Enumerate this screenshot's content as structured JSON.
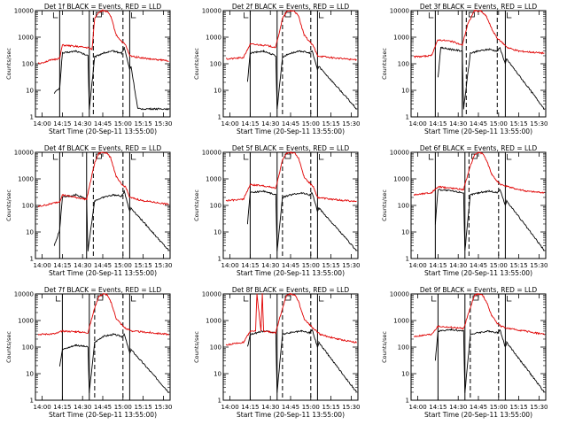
{
  "chart_data": {
    "type": "line",
    "xlabel": "Start Time (20-Sep-11 13:55:00)",
    "ylabel": "Counts/sec",
    "yscale": "log",
    "ylim": [
      1,
      10000
    ],
    "xlim_minutes": [
      0,
      100
    ],
    "x_ticks": [
      "14:00",
      "14:15",
      "14:30",
      "14:45",
      "15:00",
      "15:15",
      "15:30"
    ],
    "x_tick_minutes": [
      5,
      20,
      35,
      50,
      65,
      80,
      95
    ],
    "y_ticks": [
      "1",
      "10",
      "100",
      "1000",
      "10000"
    ],
    "y_tick_values": [
      1,
      10,
      100,
      1000,
      10000
    ],
    "legend_text": "BLACK = Events, RED = LLD",
    "series_colors": {
      "events": "#000000",
      "lld": "#e00000"
    },
    "panels": [
      {
        "title": "Det 1f BLACK = Events, RED = LLD",
        "lld_base": 120,
        "ev_base": 60,
        "peak": 10000,
        "solid_lines": [
          18,
          40,
          70
        ],
        "dashed_lines": [
          43,
          65
        ],
        "events_x": [
          14,
          18,
          20,
          30,
          39,
          40,
          44,
          50,
          58,
          64,
          66,
          70,
          71,
          76,
          90,
          99
        ],
        "events_y": [
          8,
          12,
          250,
          300,
          200,
          2,
          180,
          250,
          300,
          250,
          400,
          60,
          80,
          2,
          2,
          2
        ],
        "lld_x": [
          2,
          10,
          15,
          18,
          20,
          30,
          39,
          42,
          44,
          47,
          50,
          53,
          56,
          60,
          64,
          67,
          70,
          75,
          85,
          99
        ],
        "lld_y": [
          100,
          130,
          150,
          160,
          500,
          450,
          400,
          350,
          5000,
          9000,
          10000,
          9500,
          6000,
          1200,
          700,
          500,
          200,
          180,
          150,
          130
        ]
      },
      {
        "title": "Det 2f BLACK = Events, RED = LLD",
        "lld_base": 140,
        "ev_base": 70,
        "peak": 10000,
        "solid_lines": [
          20,
          40,
          70
        ],
        "dashed_lines": [
          44,
          65
        ],
        "events_x": [
          18,
          20,
          30,
          39,
          40,
          44,
          50,
          58,
          64,
          66,
          70,
          71,
          99
        ],
        "events_y": [
          20,
          250,
          300,
          200,
          2,
          180,
          250,
          300,
          250,
          300,
          60,
          80,
          2
        ],
        "lld_x": [
          2,
          15,
          20,
          30,
          39,
          44,
          47,
          50,
          53,
          56,
          60,
          64,
          67,
          70,
          80,
          99
        ],
        "lld_y": [
          150,
          170,
          550,
          500,
          420,
          5000,
          9000,
          10000,
          9500,
          6000,
          1200,
          700,
          450,
          200,
          170,
          140
        ]
      },
      {
        "title": "Det 3f BLACK = Events, RED = LLD",
        "lld_base": 200,
        "ev_base": 100,
        "peak": 10000,
        "solid_lines": [
          18,
          38,
          70
        ],
        "dashed_lines": [
          41,
          64
        ],
        "events_x": [
          20,
          22,
          30,
          38,
          39,
          44,
          50,
          58,
          64,
          66,
          70,
          71,
          99
        ],
        "events_y": [
          30,
          400,
          350,
          300,
          2,
          250,
          300,
          350,
          300,
          400,
          100,
          150,
          2
        ],
        "lld_x": [
          2,
          15,
          20,
          30,
          38,
          42,
          47,
          52,
          56,
          60,
          64,
          68,
          72,
          80,
          99
        ],
        "lld_y": [
          180,
          200,
          800,
          700,
          500,
          3000,
          10000,
          9500,
          6000,
          2000,
          900,
          600,
          400,
          300,
          250
        ]
      },
      {
        "title": "Det 4f BLACK = Events, RED = LLD",
        "lld_base": 100,
        "ev_base": 60,
        "peak": 10000,
        "solid_lines": [
          18,
          38,
          70
        ],
        "dashed_lines": [
          43,
          65
        ],
        "events_x": [
          14,
          18,
          20,
          30,
          38,
          39,
          44,
          50,
          58,
          64,
          66,
          70,
          71,
          99
        ],
        "events_y": [
          3,
          12,
          200,
          250,
          180,
          2,
          150,
          200,
          250,
          220,
          350,
          60,
          80,
          2
        ],
        "lld_x": [
          2,
          10,
          18,
          20,
          30,
          38,
          44,
          47,
          50,
          53,
          56,
          60,
          64,
          67,
          70,
          80,
          99
        ],
        "lld_y": [
          90,
          110,
          140,
          250,
          200,
          170,
          4000,
          9000,
          10000,
          9500,
          6000,
          1200,
          600,
          500,
          200,
          150,
          110
        ]
      },
      {
        "title": "Det 5f BLACK = Events, RED = LLD",
        "lld_base": 150,
        "ev_base": 60,
        "peak": 10000,
        "solid_lines": [
          20,
          40,
          70
        ],
        "dashed_lines": [
          44,
          65
        ],
        "events_x": [
          18,
          20,
          30,
          39,
          40,
          44,
          50,
          58,
          64,
          66,
          70,
          71,
          99
        ],
        "events_y": [
          20,
          300,
          350,
          250,
          2,
          200,
          250,
          300,
          250,
          300,
          60,
          80,
          2
        ],
        "lld_x": [
          2,
          15,
          20,
          30,
          39,
          44,
          47,
          50,
          53,
          56,
          60,
          64,
          67,
          70,
          80,
          99
        ],
        "lld_y": [
          150,
          170,
          600,
          550,
          450,
          5000,
          9000,
          10000,
          9500,
          6000,
          1200,
          700,
          500,
          200,
          170,
          140
        ]
      },
      {
        "title": "Det 6f BLACK = Events, RED = LLD",
        "lld_base": 300,
        "ev_base": 120,
        "peak": 10000,
        "solid_lines": [
          18,
          40,
          70
        ],
        "dashed_lines": [
          43,
          65
        ],
        "events_x": [
          18,
          20,
          30,
          39,
          40,
          44,
          50,
          58,
          64,
          66,
          70,
          71,
          99
        ],
        "events_y": [
          20,
          400,
          350,
          300,
          2,
          250,
          300,
          350,
          300,
          400,
          100,
          150,
          2
        ],
        "lld_x": [
          2,
          15,
          20,
          30,
          39,
          44,
          47,
          50,
          53,
          56,
          60,
          64,
          67,
          72,
          85,
          99
        ],
        "lld_y": [
          250,
          300,
          500,
          450,
          400,
          3000,
          8000,
          10000,
          9000,
          5000,
          1500,
          800,
          600,
          500,
          350,
          300
        ]
      },
      {
        "title": "Det 7f BLACK = Events, RED = LLD",
        "lld_base": 350,
        "ev_base": 80,
        "peak": 10000,
        "solid_lines": [
          20,
          40,
          70
        ],
        "dashed_lines": [
          44,
          65
        ],
        "events_x": [
          18,
          20,
          30,
          39,
          40,
          44,
          50,
          58,
          64,
          66,
          70,
          71,
          99
        ],
        "events_y": [
          20,
          80,
          120,
          100,
          2,
          150,
          250,
          300,
          250,
          300,
          60,
          80,
          2
        ],
        "lld_x": [
          2,
          15,
          20,
          30,
          39,
          44,
          47,
          50,
          53,
          56,
          60,
          64,
          67,
          72,
          85,
          99
        ],
        "lld_y": [
          300,
          320,
          400,
          380,
          350,
          3000,
          8000,
          10000,
          9500,
          5000,
          1200,
          700,
          500,
          400,
          350,
          300
        ]
      },
      {
        "title": "Det 8f BLACK = Events, RED = LLD",
        "lld_base": 200,
        "ev_base": 80,
        "peak": 10000,
        "solid_lines": [
          20,
          40,
          70
        ],
        "dashed_lines": [
          44,
          65
        ],
        "events_x": [
          18,
          20,
          30,
          39,
          40,
          44,
          50,
          58,
          64,
          66,
          70,
          71,
          99
        ],
        "events_y": [
          100,
          300,
          400,
          350,
          2,
          300,
          350,
          400,
          350,
          450,
          100,
          150,
          2
        ],
        "lld_x": [
          2,
          15,
          20,
          24,
          25,
          28,
          29,
          30,
          39,
          44,
          47,
          50,
          53,
          56,
          60,
          64,
          67,
          72,
          85,
          99
        ],
        "lld_y": [
          120,
          150,
          400,
          400,
          10000,
          400,
          10000,
          400,
          350,
          3000,
          9000,
          10000,
          9500,
          5000,
          1200,
          700,
          500,
          300,
          200,
          150
        ]
      },
      {
        "title": "Det 9f BLACK = Events, RED = LLD",
        "lld_base": 300,
        "ev_base": 100,
        "peak": 10000,
        "solid_lines": [
          20,
          40,
          70
        ],
        "dashed_lines": [
          44,
          65
        ],
        "events_x": [
          18,
          20,
          30,
          39,
          40,
          44,
          50,
          58,
          64,
          66,
          70,
          71,
          99
        ],
        "events_y": [
          30,
          400,
          450,
          400,
          2,
          300,
          350,
          400,
          350,
          450,
          100,
          150,
          2
        ],
        "lld_x": [
          2,
          15,
          20,
          30,
          39,
          44,
          47,
          50,
          53,
          56,
          60,
          64,
          67,
          72,
          85,
          99
        ],
        "lld_y": [
          250,
          300,
          600,
          550,
          500,
          3000,
          9000,
          10000,
          9000,
          5000,
          1500,
          800,
          600,
          500,
          400,
          300
        ]
      }
    ]
  }
}
